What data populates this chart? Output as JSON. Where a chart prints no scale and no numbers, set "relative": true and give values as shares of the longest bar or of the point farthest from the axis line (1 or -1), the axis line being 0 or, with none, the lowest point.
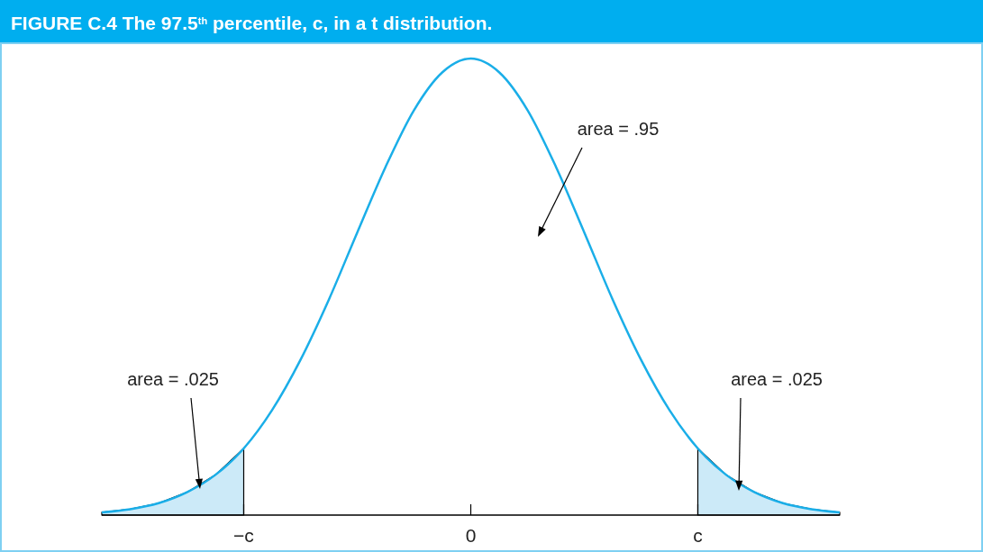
{
  "chart_data": {
    "type": "line",
    "title": "FIGURE C.4 The 97.5$^{th}$ percentile, c, in a t distribution.",
    "relative": true,
    "categories": [
      null,
      null,
      null,
      null,
      null,
      "−c",
      null,
      null,
      null,
      null,
      null,
      null,
      null,
      "0",
      null,
      null,
      null,
      null,
      null,
      null,
      null,
      "c",
      null,
      null,
      null,
      null,
      null
    ],
    "series": [
      {
        "type": "area",
        "color": "#cceaf8",
        "values": [
          0.006,
          0.013,
          0.026,
          0.05,
          0.088,
          0.146,
          null,
          null,
          null,
          null,
          null,
          null,
          null,
          null,
          null,
          null,
          null,
          null,
          null,
          null,
          null,
          null,
          null,
          null,
          null,
          null,
          null
        ]
      },
      {
        "type": "area",
        "color": "#cceaf8",
        "values": [
          null,
          null,
          null,
          null,
          null,
          null,
          null,
          null,
          null,
          null,
          null,
          null,
          null,
          null,
          null,
          null,
          null,
          null,
          null,
          null,
          null,
          0.146,
          0.088,
          0.05,
          0.026,
          0.013,
          0.006
        ]
      },
      {
        "color": "#1aaee8",
        "values": [
          0.006,
          0.013,
          0.026,
          0.05,
          0.088,
          0.146,
          0.23,
          0.34,
          0.472,
          0.619,
          0.763,
          0.887,
          0.97,
          1,
          0.97,
          0.887,
          0.763,
          0.619,
          0.472,
          0.34,
          0.23,
          0.146,
          0.088,
          0.05,
          0.026,
          0.013,
          0.006
        ]
      }
    ],
    "annotations": [
      "area = .025",
      "area = .95",
      "area = .025"
    ]
  }
}
